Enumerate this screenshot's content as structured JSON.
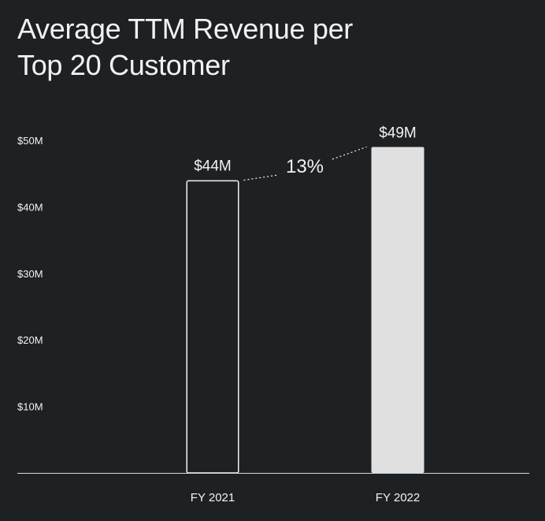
{
  "chart_data": {
    "type": "bar",
    "title_lines": [
      "Average TTM Revenue per",
      "Top 20 Customer"
    ],
    "categories": [
      "FY 2021",
      "FY 2022"
    ],
    "values": [
      44,
      49
    ],
    "value_labels": [
      "$44M",
      "$49M"
    ],
    "bar_styles": [
      "outline",
      "filled"
    ],
    "ytick_values": [
      10,
      20,
      30,
      40,
      50
    ],
    "ytick_labels": [
      "$10M",
      "$20M",
      "$30M",
      "$40M",
      "$50M"
    ],
    "ylim": [
      0,
      50
    ],
    "xlabel": "",
    "ylabel": "",
    "grid": false,
    "annotation": {
      "text": "13%",
      "from": "FY 2021",
      "to": "FY 2022"
    }
  },
  "colors": {
    "background": "#1e2124",
    "text": "#f2f2f2",
    "axis": "#d8d8d8",
    "bar_outline": "#f2f2f2",
    "bar_fill": "#e0e0e0"
  }
}
